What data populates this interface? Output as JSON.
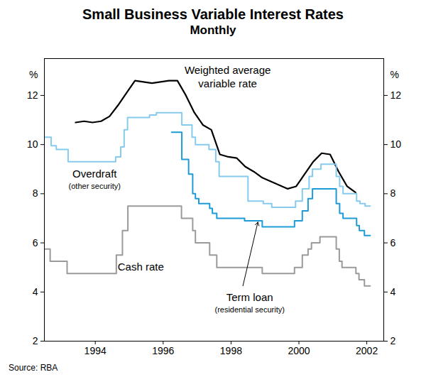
{
  "chart_data": {
    "type": "line",
    "title": "Small Business Variable Interest Rates",
    "subtitle": "Monthly",
    "source": "Source: RBA",
    "ylabel": "%",
    "xlim": [
      1992.5,
      2002.5
    ],
    "xticks": [
      1994,
      1996,
      1998,
      2000,
      2002
    ],
    "ylim": [
      2,
      13.5
    ],
    "yticks": [
      2,
      4,
      6,
      8,
      10,
      12
    ],
    "grid": false,
    "series": [
      {
        "name": "Weighted average\nvariable rate",
        "color": "#000000",
        "type": "line",
        "x": [
          1993.42,
          1993.67,
          1993.92,
          1994.17,
          1994.42,
          1994.67,
          1994.92,
          1995.17,
          1995.42,
          1995.67,
          1995.92,
          1996.17,
          1996.42,
          1996.67,
          1996.92,
          1997.17,
          1997.42,
          1997.67,
          1997.92,
          1998.17,
          1998.42,
          1998.67,
          1998.92,
          1999.17,
          1999.42,
          1999.67,
          1999.92,
          2000.17,
          2000.42,
          2000.67,
          2000.92,
          2001.17,
          2001.42,
          2001.67
        ],
        "values": [
          10.9,
          10.95,
          10.9,
          10.95,
          11.15,
          11.6,
          12.1,
          12.6,
          12.55,
          12.5,
          12.55,
          12.6,
          12.6,
          12.0,
          11.3,
          10.8,
          10.6,
          9.6,
          9.5,
          9.45,
          9.1,
          8.9,
          8.65,
          8.5,
          8.35,
          8.2,
          8.3,
          8.8,
          9.3,
          9.65,
          9.6,
          8.9,
          8.3,
          8.05
        ]
      },
      {
        "name": "Overdraft\n(other security)",
        "color": "#86cbee",
        "type": "step",
        "x": [
          1992.5,
          1992.7,
          1992.85,
          1993.2,
          1994.6,
          1994.75,
          1994.85,
          1994.95,
          1995.6,
          1995.8,
          1996.55,
          1996.85,
          1996.95,
          1997.35,
          1997.55,
          1997.65,
          1998.5,
          1998.95,
          1999.2,
          1999.9,
          2000.1,
          2000.3,
          2000.4,
          2000.65,
          2001.1,
          2001.2,
          2001.3,
          2001.7,
          2001.8,
          2001.95,
          2002.1
        ],
        "values": [
          10.3,
          9.95,
          9.8,
          9.3,
          9.5,
          9.9,
          10.6,
          11.1,
          11.2,
          11.3,
          10.8,
          10.3,
          10.0,
          9.8,
          9.3,
          8.7,
          7.7,
          7.6,
          7.45,
          7.7,
          8.2,
          8.7,
          9.0,
          9.2,
          8.7,
          8.3,
          8.0,
          7.7,
          7.6,
          7.5,
          7.5
        ]
      },
      {
        "name": "Term loan\n(residential security)",
        "color": "#1e9bd7",
        "type": "step",
        "x": [
          1996.25,
          1996.55,
          1996.75,
          1996.87,
          1996.95,
          1997.05,
          1997.37,
          1997.45,
          1997.58,
          1998.4,
          1998.92,
          1999.87,
          2000.1,
          2000.27,
          2000.4,
          2001.1,
          2001.2,
          2001.3,
          2001.7,
          2001.78,
          2001.93,
          2002.1
        ],
        "values": [
          10.5,
          9.4,
          8.8,
          8.0,
          7.8,
          7.6,
          7.4,
          7.2,
          7.0,
          6.9,
          6.65,
          6.9,
          7.3,
          7.8,
          8.2,
          7.6,
          7.2,
          7.0,
          6.7,
          6.5,
          6.3,
          6.3
        ]
      },
      {
        "name": "Cash rate",
        "color": "#9a9a9a",
        "type": "step",
        "x": [
          1992.5,
          1992.67,
          1993.17,
          1994.62,
          1994.8,
          1994.96,
          1996.54,
          1996.87,
          1996.95,
          1997.37,
          1997.58,
          1998.92,
          1999.87,
          2000.1,
          2000.27,
          2000.37,
          2000.62,
          2001.1,
          2001.19,
          2001.27,
          2001.68,
          2001.77,
          2001.93,
          2002.1
        ],
        "values": [
          5.75,
          5.25,
          4.75,
          5.5,
          6.5,
          7.5,
          7.0,
          6.5,
          6.0,
          5.5,
          5.0,
          4.75,
          5.0,
          5.5,
          5.75,
          6.0,
          6.25,
          5.75,
          5.25,
          5.0,
          4.75,
          4.5,
          4.25,
          4.25
        ]
      }
    ]
  }
}
